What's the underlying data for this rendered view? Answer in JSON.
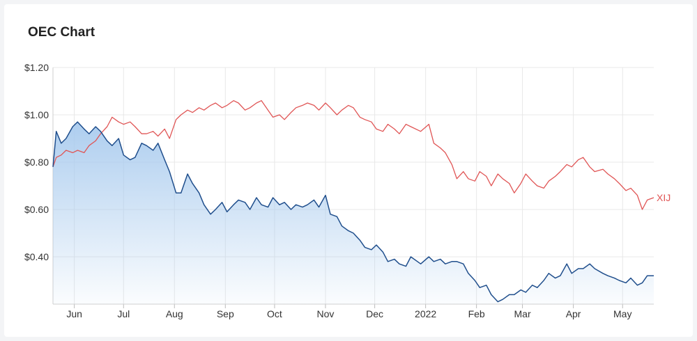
{
  "card": {
    "title": "OEC Chart"
  },
  "chart_data": {
    "type": "area",
    "title": "OEC Chart",
    "xlabel": "",
    "ylabel": "",
    "ylim": [
      0.2,
      1.2
    ],
    "y_ticks": [
      {
        "value": 1.2,
        "label": "$1.20"
      },
      {
        "value": 1.0,
        "label": "$1.00"
      },
      {
        "value": 0.8,
        "label": "$0.80"
      },
      {
        "value": 0.6,
        "label": "$0.60"
      },
      {
        "value": 0.4,
        "label": "$0.40"
      }
    ],
    "x_ticks": [
      {
        "date": "2021-06-01",
        "label": "Jun"
      },
      {
        "date": "2021-07-01",
        "label": "Jul"
      },
      {
        "date": "2021-08-01",
        "label": "Aug"
      },
      {
        "date": "2021-09-01",
        "label": "Sep"
      },
      {
        "date": "2021-10-01",
        "label": "Oct"
      },
      {
        "date": "2021-11-01",
        "label": "Nov"
      },
      {
        "date": "2021-12-01",
        "label": "Dec"
      },
      {
        "date": "2022-01-01",
        "label": "2022"
      },
      {
        "date": "2022-02-01",
        "label": "Feb"
      },
      {
        "date": "2022-03-01",
        "label": "Mar"
      },
      {
        "date": "2022-04-01",
        "label": "Apr"
      },
      {
        "date": "2022-05-01",
        "label": "May"
      }
    ],
    "x_range": [
      "2021-05-19",
      "2022-05-20"
    ],
    "grid": true,
    "colors": {
      "oec": "#1f4e8c",
      "oec_fill": "#a9cbee",
      "xij": "#e05555",
      "grid": "#e8e8e8"
    },
    "series": [
      {
        "name": "",
        "type": "area",
        "x": [
          "2021-05-19",
          "2021-05-21",
          "2021-05-24",
          "2021-05-27",
          "2021-05-31",
          "2021-06-03",
          "2021-06-07",
          "2021-06-10",
          "2021-06-14",
          "2021-06-17",
          "2021-06-21",
          "2021-06-24",
          "2021-06-28",
          "2021-07-01",
          "2021-07-05",
          "2021-07-08",
          "2021-07-12",
          "2021-07-15",
          "2021-07-19",
          "2021-07-22",
          "2021-07-26",
          "2021-07-29",
          "2021-08-02",
          "2021-08-05",
          "2021-08-09",
          "2021-08-12",
          "2021-08-16",
          "2021-08-19",
          "2021-08-23",
          "2021-08-26",
          "2021-08-30",
          "2021-09-02",
          "2021-09-06",
          "2021-09-09",
          "2021-09-13",
          "2021-09-16",
          "2021-09-20",
          "2021-09-23",
          "2021-09-27",
          "2021-09-30",
          "2021-10-04",
          "2021-10-07",
          "2021-10-11",
          "2021-10-14",
          "2021-10-18",
          "2021-10-21",
          "2021-10-25",
          "2021-10-28",
          "2021-11-01",
          "2021-11-04",
          "2021-11-08",
          "2021-11-11",
          "2021-11-15",
          "2021-11-18",
          "2021-11-22",
          "2021-11-25",
          "2021-11-29",
          "2021-12-02",
          "2021-12-06",
          "2021-12-09",
          "2021-12-13",
          "2021-12-16",
          "2021-12-20",
          "2021-12-23",
          "2021-12-29",
          "2022-01-03",
          "2022-01-06",
          "2022-01-10",
          "2022-01-13",
          "2022-01-17",
          "2022-01-20",
          "2022-01-24",
          "2022-01-27",
          "2022-01-31",
          "2022-02-03",
          "2022-02-07",
          "2022-02-10",
          "2022-02-14",
          "2022-02-17",
          "2022-02-21",
          "2022-02-24",
          "2022-02-28",
          "2022-03-03",
          "2022-03-07",
          "2022-03-10",
          "2022-03-14",
          "2022-03-17",
          "2022-03-21",
          "2022-03-24",
          "2022-03-28",
          "2022-03-31",
          "2022-04-04",
          "2022-04-07",
          "2022-04-11",
          "2022-04-14",
          "2022-04-19",
          "2022-04-22",
          "2022-04-26",
          "2022-04-29",
          "2022-05-03",
          "2022-05-06",
          "2022-05-10",
          "2022-05-13",
          "2022-05-16",
          "2022-05-20"
        ],
        "values": [
          0.78,
          0.93,
          0.88,
          0.9,
          0.95,
          0.97,
          0.94,
          0.92,
          0.95,
          0.93,
          0.89,
          0.87,
          0.9,
          0.83,
          0.81,
          0.82,
          0.88,
          0.87,
          0.85,
          0.88,
          0.81,
          0.76,
          0.67,
          0.67,
          0.75,
          0.71,
          0.67,
          0.62,
          0.58,
          0.6,
          0.63,
          0.59,
          0.62,
          0.64,
          0.63,
          0.6,
          0.65,
          0.62,
          0.61,
          0.65,
          0.62,
          0.63,
          0.6,
          0.62,
          0.61,
          0.62,
          0.64,
          0.61,
          0.66,
          0.58,
          0.57,
          0.53,
          0.51,
          0.5,
          0.47,
          0.44,
          0.43,
          0.45,
          0.42,
          0.38,
          0.39,
          0.37,
          0.36,
          0.4,
          0.37,
          0.4,
          0.38,
          0.39,
          0.37,
          0.38,
          0.38,
          0.37,
          0.33,
          0.3,
          0.27,
          0.28,
          0.24,
          0.21,
          0.22,
          0.24,
          0.24,
          0.26,
          0.25,
          0.28,
          0.27,
          0.3,
          0.33,
          0.31,
          0.32,
          0.37,
          0.33,
          0.35,
          0.35,
          0.37,
          0.35,
          0.33,
          0.32,
          0.31,
          0.3,
          0.29,
          0.31,
          0.28,
          0.29,
          0.32,
          0.32
        ]
      },
      {
        "name": "XIJ",
        "type": "line",
        "x": [
          "2021-05-19",
          "2021-05-21",
          "2021-05-24",
          "2021-05-27",
          "2021-05-31",
          "2021-06-03",
          "2021-06-07",
          "2021-06-10",
          "2021-06-14",
          "2021-06-17",
          "2021-06-21",
          "2021-06-24",
          "2021-06-28",
          "2021-07-01",
          "2021-07-05",
          "2021-07-08",
          "2021-07-12",
          "2021-07-15",
          "2021-07-19",
          "2021-07-22",
          "2021-07-26",
          "2021-07-29",
          "2021-08-02",
          "2021-08-05",
          "2021-08-09",
          "2021-08-12",
          "2021-08-16",
          "2021-08-19",
          "2021-08-23",
          "2021-08-26",
          "2021-08-30",
          "2021-09-02",
          "2021-09-06",
          "2021-09-09",
          "2021-09-13",
          "2021-09-16",
          "2021-09-20",
          "2021-09-23",
          "2021-09-27",
          "2021-09-30",
          "2021-10-04",
          "2021-10-07",
          "2021-10-11",
          "2021-10-14",
          "2021-10-18",
          "2021-10-21",
          "2021-10-25",
          "2021-10-28",
          "2021-11-01",
          "2021-11-04",
          "2021-11-08",
          "2021-11-11",
          "2021-11-15",
          "2021-11-18",
          "2021-11-22",
          "2021-11-25",
          "2021-11-29",
          "2021-12-02",
          "2021-12-06",
          "2021-12-09",
          "2021-12-13",
          "2021-12-16",
          "2021-12-20",
          "2021-12-23",
          "2021-12-29",
          "2022-01-03",
          "2022-01-06",
          "2022-01-10",
          "2022-01-13",
          "2022-01-17",
          "2022-01-20",
          "2022-01-24",
          "2022-01-27",
          "2022-01-31",
          "2022-02-03",
          "2022-02-07",
          "2022-02-10",
          "2022-02-14",
          "2022-02-17",
          "2022-02-21",
          "2022-02-24",
          "2022-02-28",
          "2022-03-03",
          "2022-03-07",
          "2022-03-10",
          "2022-03-14",
          "2022-03-17",
          "2022-03-21",
          "2022-03-24",
          "2022-03-28",
          "2022-03-31",
          "2022-04-04",
          "2022-04-07",
          "2022-04-11",
          "2022-04-14",
          "2022-04-19",
          "2022-04-22",
          "2022-04-26",
          "2022-04-29",
          "2022-05-03",
          "2022-05-06",
          "2022-05-10",
          "2022-05-13",
          "2022-05-16",
          "2022-05-20"
        ],
        "values": [
          0.78,
          0.82,
          0.83,
          0.85,
          0.84,
          0.85,
          0.84,
          0.87,
          0.89,
          0.92,
          0.95,
          0.99,
          0.97,
          0.96,
          0.97,
          0.95,
          0.92,
          0.92,
          0.93,
          0.91,
          0.94,
          0.9,
          0.98,
          1.0,
          1.02,
          1.01,
          1.03,
          1.02,
          1.04,
          1.05,
          1.03,
          1.04,
          1.06,
          1.05,
          1.02,
          1.03,
          1.05,
          1.06,
          1.02,
          0.99,
          1.0,
          0.98,
          1.01,
          1.03,
          1.04,
          1.05,
          1.04,
          1.02,
          1.05,
          1.03,
          1.0,
          1.02,
          1.04,
          1.03,
          0.99,
          0.98,
          0.97,
          0.94,
          0.93,
          0.96,
          0.94,
          0.92,
          0.96,
          0.95,
          0.93,
          0.96,
          0.88,
          0.86,
          0.84,
          0.79,
          0.73,
          0.76,
          0.73,
          0.72,
          0.76,
          0.74,
          0.7,
          0.75,
          0.73,
          0.71,
          0.67,
          0.71,
          0.75,
          0.72,
          0.7,
          0.69,
          0.72,
          0.74,
          0.76,
          0.79,
          0.78,
          0.81,
          0.82,
          0.78,
          0.76,
          0.77,
          0.75,
          0.73,
          0.71,
          0.68,
          0.69,
          0.66,
          0.6,
          0.64,
          0.65
        ]
      }
    ]
  }
}
